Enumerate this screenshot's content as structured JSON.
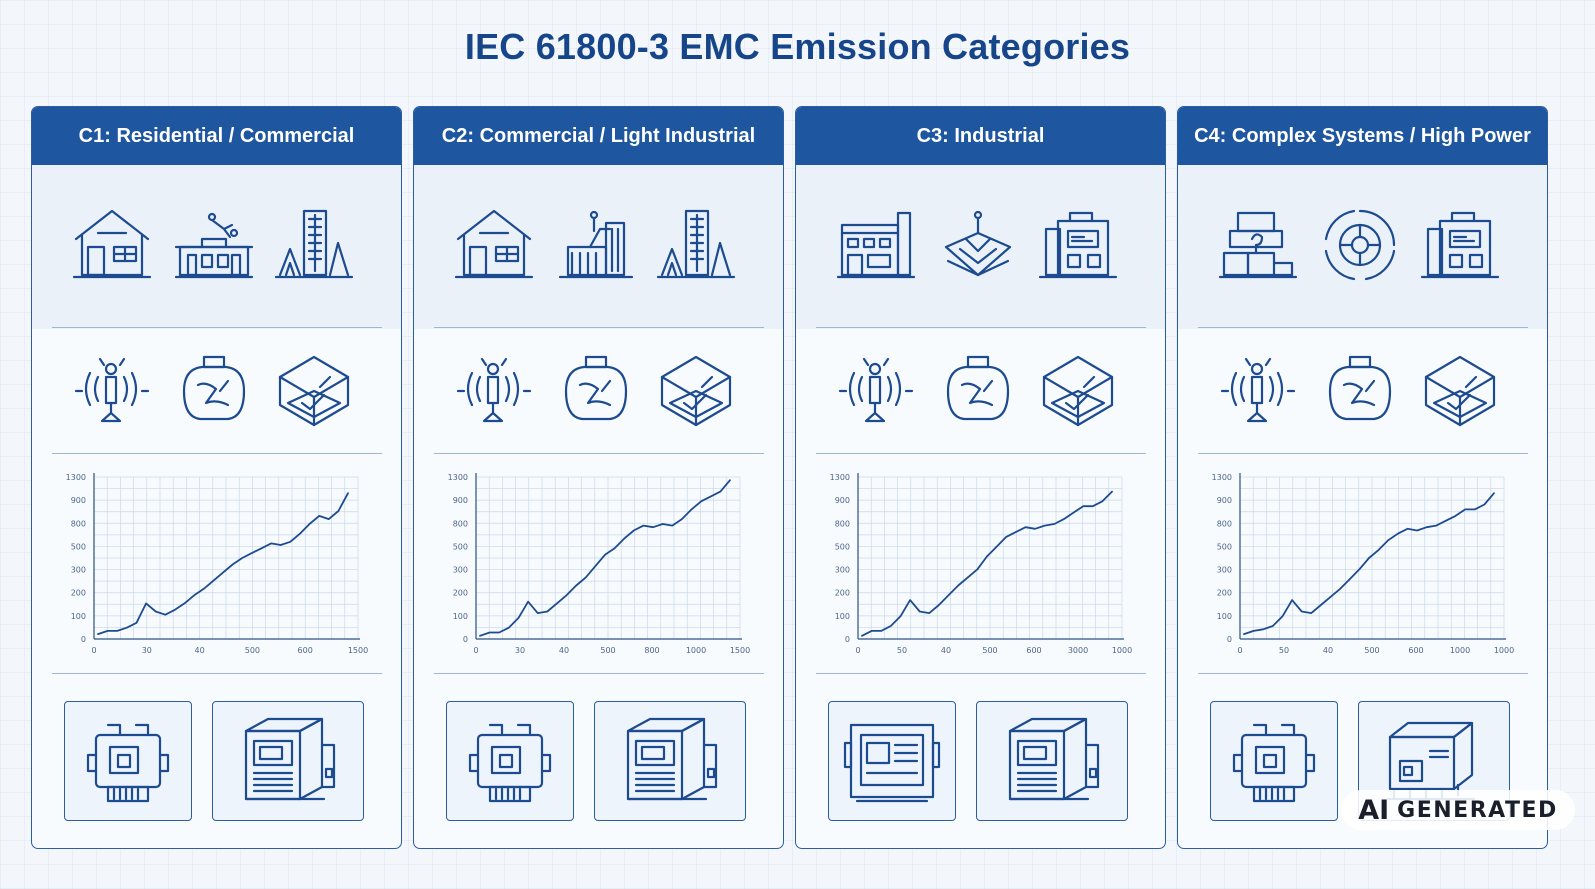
{
  "title": "IEC 61800-3 EMC Emission Categories",
  "categories": [
    {
      "header": "C1: Residential / Commercial",
      "environment_icons": [
        "house-icon",
        "small-office-icon",
        "city-skyline-icon"
      ],
      "equipment_icons": [
        "signal-emitter-icon",
        "emission-bag-icon",
        "enclosure-box-icon"
      ],
      "product_icons": [
        "compact-drive-icon",
        "drive-cabinet-icon"
      ],
      "chart_data": {
        "type": "line",
        "x_ticks": [
          "0",
          "30",
          "40",
          "500",
          "600",
          "1500"
        ],
        "y_ticks": [
          "0",
          "100",
          "200",
          "300",
          "500",
          "800",
          "900",
          "1300"
        ],
        "series": [
          {
            "values": [
              0.03,
              0.05,
              0.05,
              0.07,
              0.1,
              0.22,
              0.17,
              0.15,
              0.18,
              0.22,
              0.27,
              0.31,
              0.36,
              0.41,
              0.46,
              0.5,
              0.53,
              0.56,
              0.59,
              0.58,
              0.6,
              0.65,
              0.71,
              0.76,
              0.74,
              0.79,
              0.9
            ]
          }
        ]
      }
    },
    {
      "header": "C2: Commercial / Light Industrial",
      "environment_icons": [
        "house-icon",
        "commercial-building-icon",
        "city-skyline-icon"
      ],
      "equipment_icons": [
        "signal-emitter-icon",
        "emission-bag-icon",
        "enclosure-box-icon"
      ],
      "product_icons": [
        "compact-drive-icon",
        "drive-cabinet-icon"
      ],
      "chart_data": {
        "type": "line",
        "x_ticks": [
          "0",
          "30",
          "40",
          "500",
          "800",
          "1000",
          "1500"
        ],
        "y_ticks": [
          "0",
          "100",
          "200",
          "300",
          "500",
          "800",
          "900",
          "1300"
        ],
        "series": [
          {
            "values": [
              0.02,
              0.04,
              0.04,
              0.07,
              0.13,
              0.23,
              0.16,
              0.17,
              0.22,
              0.27,
              0.33,
              0.38,
              0.45,
              0.52,
              0.56,
              0.62,
              0.67,
              0.7,
              0.69,
              0.71,
              0.7,
              0.74,
              0.8,
              0.85,
              0.88,
              0.91,
              0.98
            ]
          }
        ]
      }
    },
    {
      "header": "C3: Industrial",
      "environment_icons": [
        "factory-icon",
        "network-node-icon",
        "industrial-plant-icon"
      ],
      "equipment_icons": [
        "signal-emitter-icon",
        "emission-bag-icon",
        "enclosure-box-icon"
      ],
      "product_icons": [
        "control-panel-icon",
        "drive-cabinet-icon"
      ],
      "chart_data": {
        "type": "line",
        "x_ticks": [
          "0",
          "50",
          "40",
          "500",
          "600",
          "3000",
          "1000"
        ],
        "y_ticks": [
          "0",
          "100",
          "200",
          "300",
          "500",
          "800",
          "900",
          "1300"
        ],
        "series": [
          {
            "values": [
              0.02,
              0.05,
              0.05,
              0.08,
              0.14,
              0.24,
              0.17,
              0.16,
              0.21,
              0.27,
              0.33,
              0.38,
              0.43,
              0.51,
              0.57,
              0.63,
              0.66,
              0.69,
              0.68,
              0.7,
              0.71,
              0.74,
              0.78,
              0.82,
              0.82,
              0.85,
              0.91
            ]
          }
        ]
      }
    },
    {
      "header": "C4: Complex Systems / High Power",
      "environment_icons": [
        "stacked-modules-icon",
        "target-ring-icon",
        "industrial-plant-icon"
      ],
      "equipment_icons": [
        "signal-emitter-icon",
        "emission-bag-icon",
        "enclosure-box-icon"
      ],
      "product_icons": [
        "compact-drive-icon",
        "power-unit-icon"
      ],
      "chart_data": {
        "type": "line",
        "x_ticks": [
          "0",
          "50",
          "40",
          "500",
          "600",
          "1000",
          "1000"
        ],
        "y_ticks": [
          "0",
          "100",
          "200",
          "300",
          "500",
          "800",
          "900",
          "1300"
        ],
        "series": [
          {
            "values": [
              0.03,
              0.05,
              0.06,
              0.08,
              0.14,
              0.24,
              0.17,
              0.16,
              0.21,
              0.26,
              0.31,
              0.37,
              0.43,
              0.5,
              0.55,
              0.61,
              0.65,
              0.68,
              0.67,
              0.69,
              0.7,
              0.73,
              0.76,
              0.8,
              0.8,
              0.83,
              0.9
            ]
          }
        ]
      }
    }
  ],
  "watermark": {
    "ai": "AI",
    "text": "GENERATED"
  },
  "colors": {
    "primary": "#1f56a0",
    "line": "#1d4b8f",
    "background": "#f3f7fc"
  }
}
